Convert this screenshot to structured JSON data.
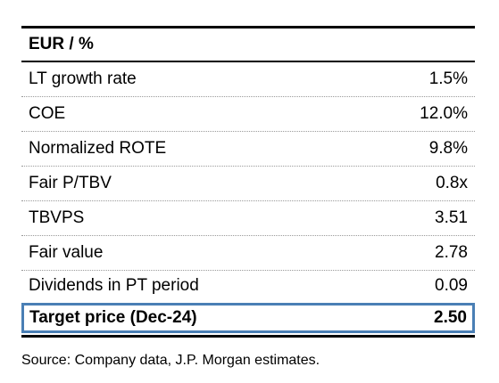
{
  "table": {
    "header": "EUR / %",
    "rows": [
      {
        "label": "LT growth rate",
        "value": "1.5%"
      },
      {
        "label": "COE",
        "value": "12.0%"
      },
      {
        "label": "Normalized ROTE",
        "value": "9.8%"
      },
      {
        "label": "Fair P/TBV",
        "value": "0.8x"
      },
      {
        "label": "TBVPS",
        "value": "3.51"
      },
      {
        "label": "Fair value",
        "value": "2.78"
      },
      {
        "label": "Dividends in PT period",
        "value": "0.09"
      }
    ],
    "target": {
      "label": "Target price (Dec-24)",
      "value": "2.50"
    }
  },
  "source": "Source: Company data, J.P. Morgan estimates.",
  "colors": {
    "highlight_border": "#4a7fb5"
  }
}
